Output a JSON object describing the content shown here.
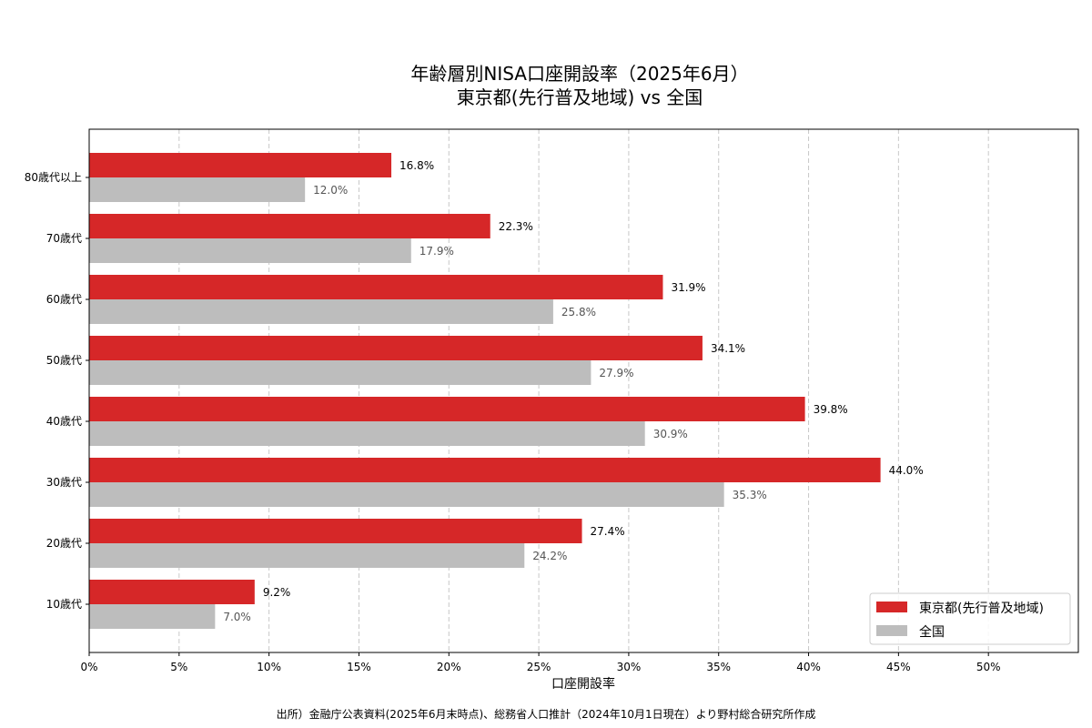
{
  "chart_data": {
    "type": "bar",
    "orientation": "horizontal",
    "title_line1": "年齢層別NISA口座開設率（2025年6月）",
    "title_line2": "東京都(先行普及地域) vs 全国",
    "xlabel": "口座開設率",
    "ylabel": "",
    "xlim": [
      0,
      55
    ],
    "xticks": [
      0,
      5,
      10,
      15,
      20,
      25,
      30,
      35,
      40,
      45,
      50
    ],
    "xtick_labels": [
      "0%",
      "5%",
      "10%",
      "15%",
      "20%",
      "25%",
      "30%",
      "35%",
      "40%",
      "45%",
      "50%"
    ],
    "grid": "x, dashed",
    "legend_position": "bottom-right",
    "categories": [
      "80歳代以上",
      "70歳代",
      "60歳代",
      "50歳代",
      "40歳代",
      "30歳代",
      "20歳代",
      "10歳代"
    ],
    "series": [
      {
        "name": "東京都(先行普及地域)",
        "color": "#d62728",
        "label_color": "#000000",
        "values": [
          16.8,
          22.3,
          31.9,
          34.1,
          39.8,
          44.0,
          27.4,
          9.2
        ],
        "labels": [
          "16.8%",
          "22.3%",
          "31.9%",
          "34.1%",
          "39.8%",
          "44.0%",
          "27.4%",
          "9.2%"
        ]
      },
      {
        "name": "全国",
        "color": "#bdbdbd",
        "label_color": "#555555",
        "values": [
          12.0,
          17.9,
          25.8,
          27.9,
          30.9,
          35.3,
          24.2,
          7.0
        ],
        "labels": [
          "12.0%",
          "17.9%",
          "25.8%",
          "27.9%",
          "30.9%",
          "35.3%",
          "24.2%",
          "7.0%"
        ]
      }
    ],
    "source_note": "出所）金融庁公表資料(2025年6月末時点)、総務省人口推計（2024年10月1日現在）より野村総合研究所作成"
  }
}
